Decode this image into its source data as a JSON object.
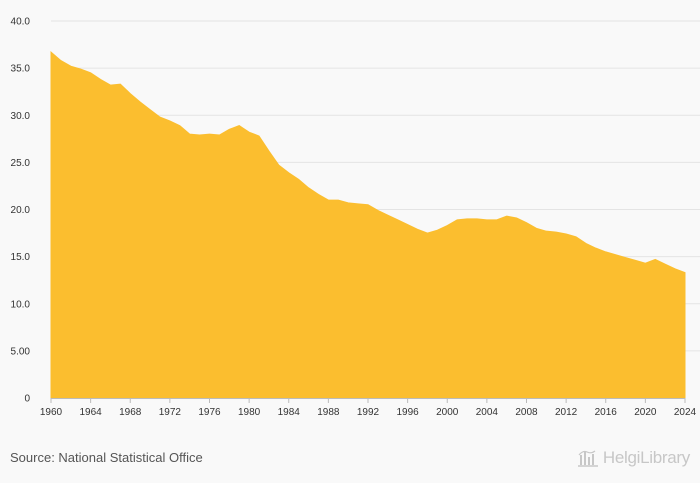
{
  "source": "Source: National Statistical Office",
  "brand": {
    "name": "HelgiLibrary",
    "icon": "helgi-logo-icon"
  },
  "colors": {
    "area": "#FBBE2F",
    "grid": "#e4e4e4",
    "background": "#f9f9f9"
  },
  "chart_data": {
    "type": "area",
    "title": "",
    "xlabel": "",
    "ylabel": "",
    "x": [
      1960,
      1961,
      1962,
      1963,
      1964,
      1965,
      1966,
      1967,
      1968,
      1969,
      1970,
      1971,
      1972,
      1973,
      1974,
      1975,
      1976,
      1977,
      1978,
      1979,
      1980,
      1981,
      1982,
      1983,
      1984,
      1985,
      1986,
      1987,
      1988,
      1989,
      1990,
      1991,
      1992,
      1993,
      1994,
      1995,
      1996,
      1997,
      1998,
      1999,
      2000,
      2001,
      2002,
      2003,
      2004,
      2005,
      2006,
      2007,
      2008,
      2009,
      2010,
      2011,
      2012,
      2013,
      2014,
      2015,
      2016,
      2017,
      2018,
      2019,
      2020,
      2021,
      2022,
      2023,
      2024
    ],
    "series": [
      {
        "values": [
          36.7,
          35.8,
          35.2,
          34.9,
          34.5,
          33.8,
          33.2,
          33.3,
          32.3,
          31.4,
          30.6,
          29.8,
          29.4,
          28.9,
          28.0,
          27.9,
          28.0,
          27.9,
          28.5,
          28.9,
          28.2,
          27.8,
          26.2,
          24.7,
          23.9,
          23.2,
          22.3,
          21.6,
          21.0,
          21.0,
          20.7,
          20.6,
          20.5,
          19.9,
          19.4,
          18.9,
          18.4,
          17.9,
          17.5,
          17.8,
          18.3,
          18.9,
          19.0,
          19.0,
          18.9,
          18.9,
          19.3,
          19.1,
          18.6,
          18.0,
          17.7,
          17.6,
          17.4,
          17.1,
          16.4,
          15.9,
          15.5,
          15.2,
          14.9,
          14.6,
          14.3,
          14.7,
          14.2,
          13.7,
          13.3
        ]
      }
    ],
    "xticks": [
      "1960",
      "1964",
      "1968",
      "1972",
      "1976",
      "1980",
      "1984",
      "1988",
      "1992",
      "1996",
      "2000",
      "2004",
      "2008",
      "2012",
      "2016",
      "2020",
      "2024"
    ],
    "yticks": [
      "0",
      "5.00",
      "10.0",
      "15.0",
      "20.0",
      "25.0",
      "30.0",
      "35.0",
      "40.0"
    ],
    "ylim": [
      0,
      40
    ],
    "xlim": [
      1960,
      2024
    ],
    "grid": true,
    "legend": "none"
  }
}
